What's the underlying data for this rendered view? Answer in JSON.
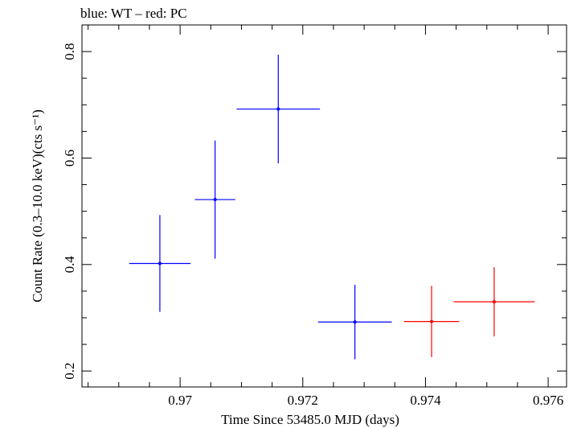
{
  "chart_data": {
    "type": "scatter",
    "title": "blue: WT – red: PC",
    "xlabel": "Time Since 53485.0 MJD (days)",
    "ylabel": "Count Rate (0.3–10.0 keV)(cts s⁻¹)",
    "xlim": [
      0.9684,
      0.9763
    ],
    "ylim": [
      0.17,
      0.85
    ],
    "x_ticks": [
      0.97,
      0.972,
      0.974,
      0.976
    ],
    "x_tick_labels": [
      "0.97",
      "0.972",
      "0.974",
      "0.976"
    ],
    "y_ticks": [
      0.2,
      0.4,
      0.6,
      0.8
    ],
    "y_tick_labels": [
      "0.2",
      "0.4",
      "0.6",
      "0.8"
    ],
    "grid": false,
    "series": [
      {
        "color": "#0000ff",
        "points": [
          {
            "x": 0.96967,
            "xerr": 0.0005,
            "y": 0.402,
            "yerr": 0.091
          },
          {
            "x": 0.97057,
            "xerr": 0.00033,
            "y": 0.522,
            "yerr": 0.111
          },
          {
            "x": 0.9716,
            "xerr": 0.00068,
            "y": 0.692,
            "yerr": 0.102
          },
          {
            "x": 0.97285,
            "xerr": 0.0006,
            "y": 0.292,
            "yerr": 0.07
          }
        ]
      },
      {
        "color": "#ff0000",
        "points": [
          {
            "x": 0.9741,
            "xerr": 0.00045,
            "y": 0.293,
            "yerr": 0.067
          },
          {
            "x": 0.97512,
            "xerr": 0.00066,
            "y": 0.33,
            "yerr": 0.065
          }
        ]
      }
    ]
  }
}
